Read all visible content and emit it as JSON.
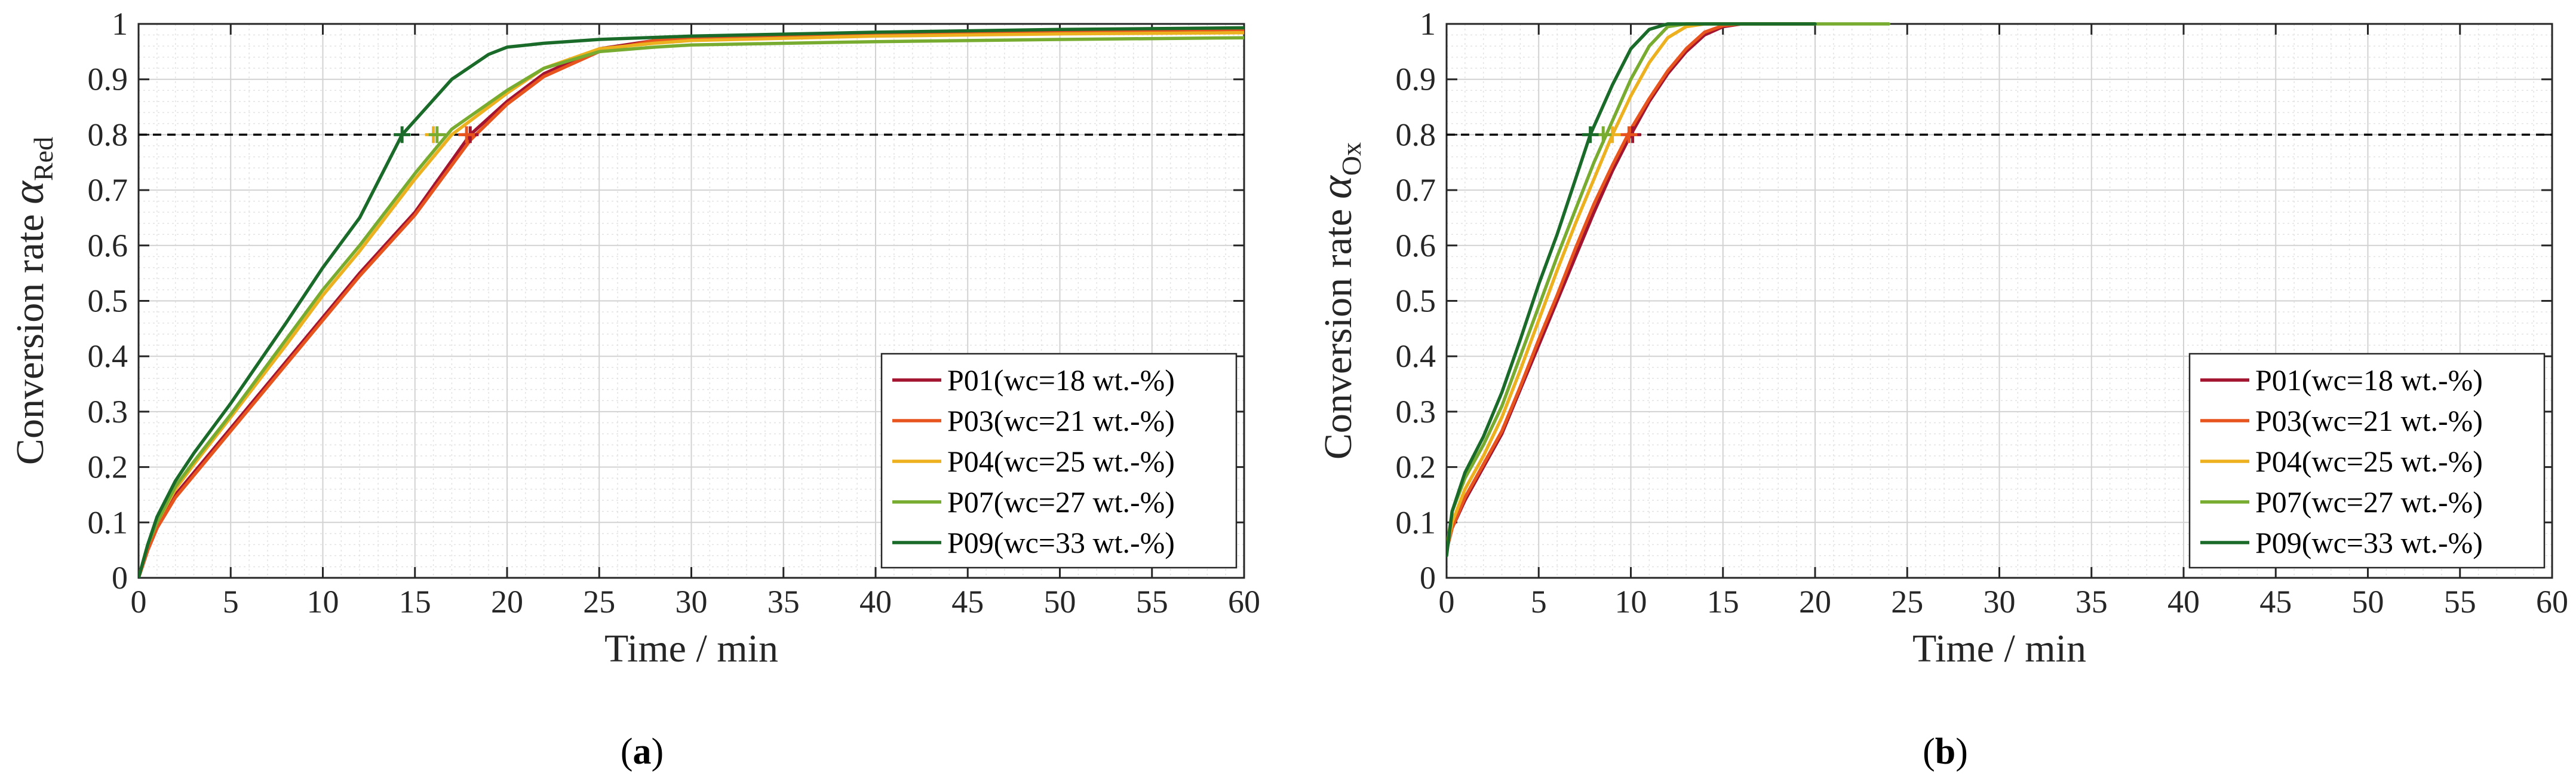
{
  "chart_data": [
    {
      "type": "line",
      "panel_label": "a",
      "xlabel": "Time / min",
      "ylabel_prefix": "Conversion rate ",
      "ylabel_symbol": "α",
      "ylabel_sub": "Red",
      "xlim": [
        0,
        60
      ],
      "ylim": [
        0,
        1
      ],
      "xticks": [
        0,
        5,
        10,
        15,
        20,
        25,
        30,
        35,
        40,
        45,
        50,
        55,
        60
      ],
      "yticks": [
        0,
        0.1,
        0.2,
        0.3,
        0.4,
        0.5,
        0.6,
        0.7,
        0.8,
        0.9,
        1
      ],
      "xtick_labels": [
        "0",
        "5",
        "10",
        "15",
        "20",
        "25",
        "30",
        "35",
        "40",
        "45",
        "50",
        "55",
        "60"
      ],
      "ytick_labels": [
        "0",
        "0.1",
        "0.2",
        "0.3",
        "0.4",
        "0.5",
        "0.6",
        "0.7",
        "0.8",
        "0.9",
        "1"
      ],
      "grid": true,
      "reference_line": {
        "y": 0.8,
        "style": "dashed",
        "color": "#000000"
      },
      "legend_position": "bottom-right",
      "series": [
        {
          "name": "P01(wc=18 wt.-%)",
          "color": "#A2142F",
          "x": [
            0,
            0.5,
            1,
            2,
            3,
            5,
            8,
            10,
            12,
            15,
            18,
            20,
            22,
            25,
            28,
            30,
            40,
            50,
            60
          ],
          "y": [
            0,
            0.05,
            0.09,
            0.15,
            0.19,
            0.27,
            0.39,
            0.47,
            0.55,
            0.66,
            0.8,
            0.86,
            0.91,
            0.955,
            0.97,
            0.975,
            0.982,
            0.987,
            0.99
          ],
          "marker": {
            "x": 18,
            "y": 0.8
          }
        },
        {
          "name": "P03(wc=21 wt.-%)",
          "color": "#E8541E",
          "x": [
            0,
            0.5,
            1,
            2,
            3,
            5,
            8,
            10,
            12,
            15,
            18,
            20,
            22,
            25,
            28,
            30,
            40,
            50,
            60
          ],
          "y": [
            0,
            0.05,
            0.09,
            0.145,
            0.185,
            0.265,
            0.385,
            0.465,
            0.545,
            0.655,
            0.79,
            0.855,
            0.905,
            0.95,
            0.97,
            0.976,
            0.984,
            0.988,
            0.99
          ],
          "marker": {
            "x": 17.8,
            "y": 0.8
          }
        },
        {
          "name": "P04(wc=25 wt.-%)",
          "color": "#EDB120",
          "x": [
            0,
            0.5,
            1,
            2,
            3,
            5,
            8,
            10,
            12,
            15,
            17,
            20,
            22,
            25,
            28,
            30,
            40,
            50,
            60
          ],
          "y": [
            0,
            0.06,
            0.1,
            0.16,
            0.205,
            0.29,
            0.42,
            0.51,
            0.59,
            0.72,
            0.8,
            0.875,
            0.92,
            0.955,
            0.965,
            0.97,
            0.978,
            0.982,
            0.984
          ],
          "marker": {
            "x": 16,
            "y": 0.8
          }
        },
        {
          "name": "P07(wc=27 wt.-%)",
          "color": "#77AC30",
          "x": [
            0,
            0.5,
            1,
            2,
            3,
            5,
            8,
            10,
            12,
            15,
            17,
            20,
            22,
            25,
            28,
            30,
            40,
            50,
            60
          ],
          "y": [
            0,
            0.06,
            0.1,
            0.165,
            0.21,
            0.295,
            0.43,
            0.52,
            0.6,
            0.73,
            0.81,
            0.88,
            0.92,
            0.95,
            0.958,
            0.962,
            0.968,
            0.972,
            0.975
          ],
          "marker": {
            "x": 16.2,
            "y": 0.8
          }
        },
        {
          "name": "P09(wc=33 wt.-%)",
          "color": "#1A6B2A",
          "x": [
            0,
            0.5,
            1,
            2,
            3,
            5,
            8,
            10,
            12,
            14.3,
            17,
            19,
            20,
            22,
            25,
            30,
            40,
            50,
            60
          ],
          "y": [
            0,
            0.06,
            0.11,
            0.175,
            0.225,
            0.315,
            0.46,
            0.56,
            0.65,
            0.8,
            0.9,
            0.945,
            0.958,
            0.965,
            0.972,
            0.978,
            0.985,
            0.99,
            0.993
          ],
          "marker": {
            "x": 14.3,
            "y": 0.8
          }
        }
      ]
    },
    {
      "type": "line",
      "panel_label": "b",
      "xlabel": "Time / min",
      "ylabel_prefix": "Conversion rate ",
      "ylabel_symbol": "α",
      "ylabel_sub": "Ox",
      "xlim": [
        0,
        60
      ],
      "ylim": [
        0,
        1
      ],
      "xticks": [
        0,
        5,
        10,
        15,
        20,
        25,
        30,
        35,
        40,
        45,
        50,
        55,
        60
      ],
      "yticks": [
        0,
        0.1,
        0.2,
        0.3,
        0.4,
        0.5,
        0.6,
        0.7,
        0.8,
        0.9,
        1
      ],
      "xtick_labels": [
        "0",
        "5",
        "10",
        "15",
        "20",
        "25",
        "30",
        "35",
        "40",
        "45",
        "50",
        "55",
        "60"
      ],
      "ytick_labels": [
        "0",
        "0.1",
        "0.2",
        "0.3",
        "0.4",
        "0.5",
        "0.6",
        "0.7",
        "0.8",
        "0.9",
        "1"
      ],
      "grid": true,
      "reference_line": {
        "y": 0.8,
        "style": "dashed",
        "color": "#000000"
      },
      "legend_position": "bottom-right",
      "series": [
        {
          "name": "P01(wc=18 wt.-%)",
          "color": "#A2142F",
          "x": [
            0,
            0.3,
            1,
            2,
            3,
            4,
            5,
            6,
            7,
            8,
            9,
            10,
            11,
            12,
            13,
            14,
            15,
            16,
            20
          ],
          "y": [
            0.05,
            0.09,
            0.14,
            0.2,
            0.26,
            0.34,
            0.42,
            0.5,
            0.58,
            0.66,
            0.735,
            0.8,
            0.86,
            0.91,
            0.95,
            0.98,
            0.995,
            1.0,
            1.0
          ],
          "marker": {
            "x": 10.1,
            "y": 0.8
          }
        },
        {
          "name": "P03(wc=21 wt.-%)",
          "color": "#E8541E",
          "x": [
            0,
            0.3,
            1,
            2,
            3,
            4,
            5,
            6,
            7,
            8,
            9,
            10,
            11,
            12,
            13,
            14,
            15,
            16,
            20
          ],
          "y": [
            0.05,
            0.09,
            0.145,
            0.205,
            0.265,
            0.345,
            0.43,
            0.51,
            0.595,
            0.675,
            0.745,
            0.81,
            0.865,
            0.915,
            0.955,
            0.985,
            0.997,
            1.0,
            1.0
          ],
          "marker": {
            "x": 9.9,
            "y": 0.8
          }
        },
        {
          "name": "P04(wc=25 wt.-%)",
          "color": "#EDB120",
          "x": [
            0,
            0.3,
            1,
            2,
            3,
            4,
            5,
            6,
            7,
            8,
            9,
            10,
            11,
            12,
            13,
            14,
            20
          ],
          "y": [
            0.05,
            0.1,
            0.16,
            0.22,
            0.29,
            0.375,
            0.465,
            0.555,
            0.64,
            0.72,
            0.8,
            0.87,
            0.93,
            0.975,
            0.995,
            1.0,
            1.0
          ],
          "marker": {
            "x": 9.0,
            "y": 0.8
          }
        },
        {
          "name": "P07(wc=27 wt.-%)",
          "color": "#77AC30",
          "x": [
            0,
            0.3,
            1,
            2,
            3,
            4,
            5,
            6,
            7,
            8,
            9,
            10,
            11,
            12,
            13,
            24
          ],
          "y": [
            0.05,
            0.12,
            0.18,
            0.24,
            0.31,
            0.4,
            0.49,
            0.58,
            0.665,
            0.75,
            0.825,
            0.9,
            0.96,
            0.995,
            1.0,
            1.0
          ],
          "marker": {
            "x": 8.5,
            "y": 0.8
          }
        },
        {
          "name": "P09(wc=33 wt.-%)",
          "color": "#1A6B2A",
          "x": [
            0,
            0.3,
            1,
            2,
            3,
            4,
            5,
            6,
            7,
            7.8,
            9,
            10,
            11,
            12,
            20
          ],
          "y": [
            0.04,
            0.12,
            0.19,
            0.255,
            0.335,
            0.43,
            0.53,
            0.62,
            0.72,
            0.8,
            0.89,
            0.955,
            0.99,
            1.0,
            1.0
          ],
          "marker": {
            "x": 7.8,
            "y": 0.8
          }
        }
      ]
    }
  ]
}
